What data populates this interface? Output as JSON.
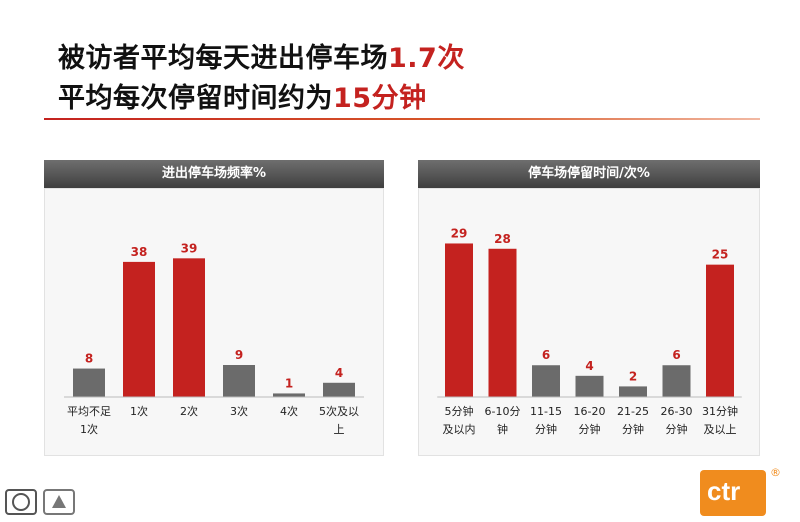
{
  "title": {
    "line1_prefix": "被访者平均每天进出停车场",
    "line1_highlight": "1.7次",
    "line2_prefix": "平均每次停留时间约为",
    "line2_highlight": "15分钟"
  },
  "colors": {
    "accent": "#c4221f",
    "neutral_bar": "#6b6b6b",
    "header_gray": "#555555",
    "logo_orange": "#f08c1e"
  },
  "logo": {
    "text": "ctr"
  },
  "chart_data": [
    {
      "type": "bar",
      "title": "进出停车场频率%",
      "categories": [
        [
          "平均不足",
          "1次"
        ],
        [
          "1次"
        ],
        [
          "2次"
        ],
        [
          "3次"
        ],
        [
          "4次"
        ],
        [
          "5次及以",
          "上"
        ]
      ],
      "values": [
        8,
        38,
        39,
        9,
        1,
        4
      ],
      "highlight": [
        false,
        true,
        true,
        false,
        false,
        false
      ],
      "ylim": [
        0,
        45
      ]
    },
    {
      "type": "bar",
      "title": "停车场停留时间/次%",
      "categories": [
        [
          "5分钟",
          "及以内"
        ],
        [
          "6-10分",
          "钟"
        ],
        [
          "11-15",
          "分钟"
        ],
        [
          "16-20",
          "分钟"
        ],
        [
          "21-25",
          "分钟"
        ],
        [
          "26-30",
          "分钟"
        ],
        [
          "31分钟",
          "及以上"
        ]
      ],
      "values": [
        29,
        28,
        6,
        4,
        2,
        6,
        25
      ],
      "highlight": [
        true,
        true,
        false,
        false,
        false,
        false,
        true
      ],
      "ylim": [
        0,
        34
      ]
    }
  ]
}
